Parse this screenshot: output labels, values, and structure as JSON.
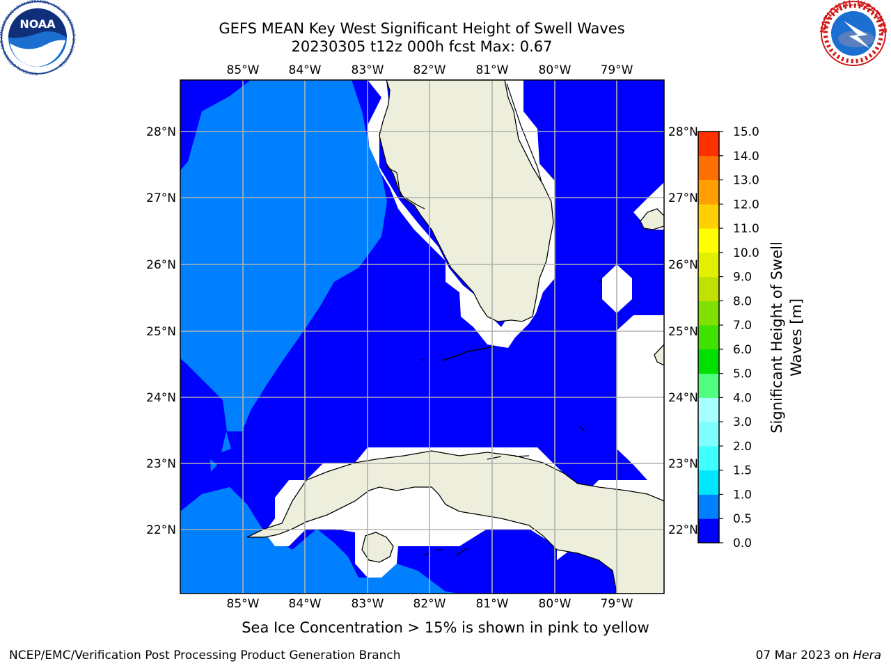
{
  "title_line1": "GEFS MEAN Key West Significant Height of Swell Waves",
  "title_line2": "20230305 t12z 000h fcst   Max: 0.67",
  "caption": "Sea Ice Concentration > 15% is shown in pink to yellow",
  "footer_left": "NCEP/EMC/Verification Post Processing Product Generation Branch",
  "footer_right_date": "07 Mar 2023 on ",
  "footer_right_host": "Hera",
  "logos": {
    "noaa_text": "NOAA",
    "noaa_ring": "NATIONAL OCEANIC AND ATMOSPHERIC ADMINISTRATION · U.S. DEPARTMENT OF COMMERCE ·",
    "nws_ring": "NATIONAL WEATHER SERVICE"
  },
  "map": {
    "lon_ticks": [
      "85°W",
      "84°W",
      "83°W",
      "82°W",
      "81°W",
      "80°W",
      "79°W"
    ],
    "lat_ticks": [
      "28°N",
      "27°N",
      "26°N",
      "25°N",
      "24°N",
      "23°N",
      "22°N"
    ],
    "colors": {
      "ocean_deep": "#0000ff",
      "ocean_light": "#0080ff",
      "land": "#eeeedc",
      "grid": "#b0b0b0"
    }
  },
  "colorbar": {
    "label_line1": "Significant Height of Swell",
    "label_line2": "Waves [m]",
    "ticks": [
      "0.0",
      "0.5",
      "1.0",
      "1.5",
      "2.0",
      "3.0",
      "4.0",
      "5.0",
      "6.0",
      "7.0",
      "8.0",
      "9.0",
      "10.0",
      "11.0",
      "12.0",
      "13.0",
      "14.0",
      "15.0"
    ],
    "colors": [
      "#0000ff",
      "#0080ff",
      "#00e6ff",
      "#40ffff",
      "#80ffff",
      "#a8ffff",
      "#50ff80",
      "#00e000",
      "#40e000",
      "#80e000",
      "#c0e000",
      "#e0f000",
      "#ffff00",
      "#ffd000",
      "#ffa000",
      "#ff7000",
      "#ff3000",
      "#ff0000"
    ]
  }
}
